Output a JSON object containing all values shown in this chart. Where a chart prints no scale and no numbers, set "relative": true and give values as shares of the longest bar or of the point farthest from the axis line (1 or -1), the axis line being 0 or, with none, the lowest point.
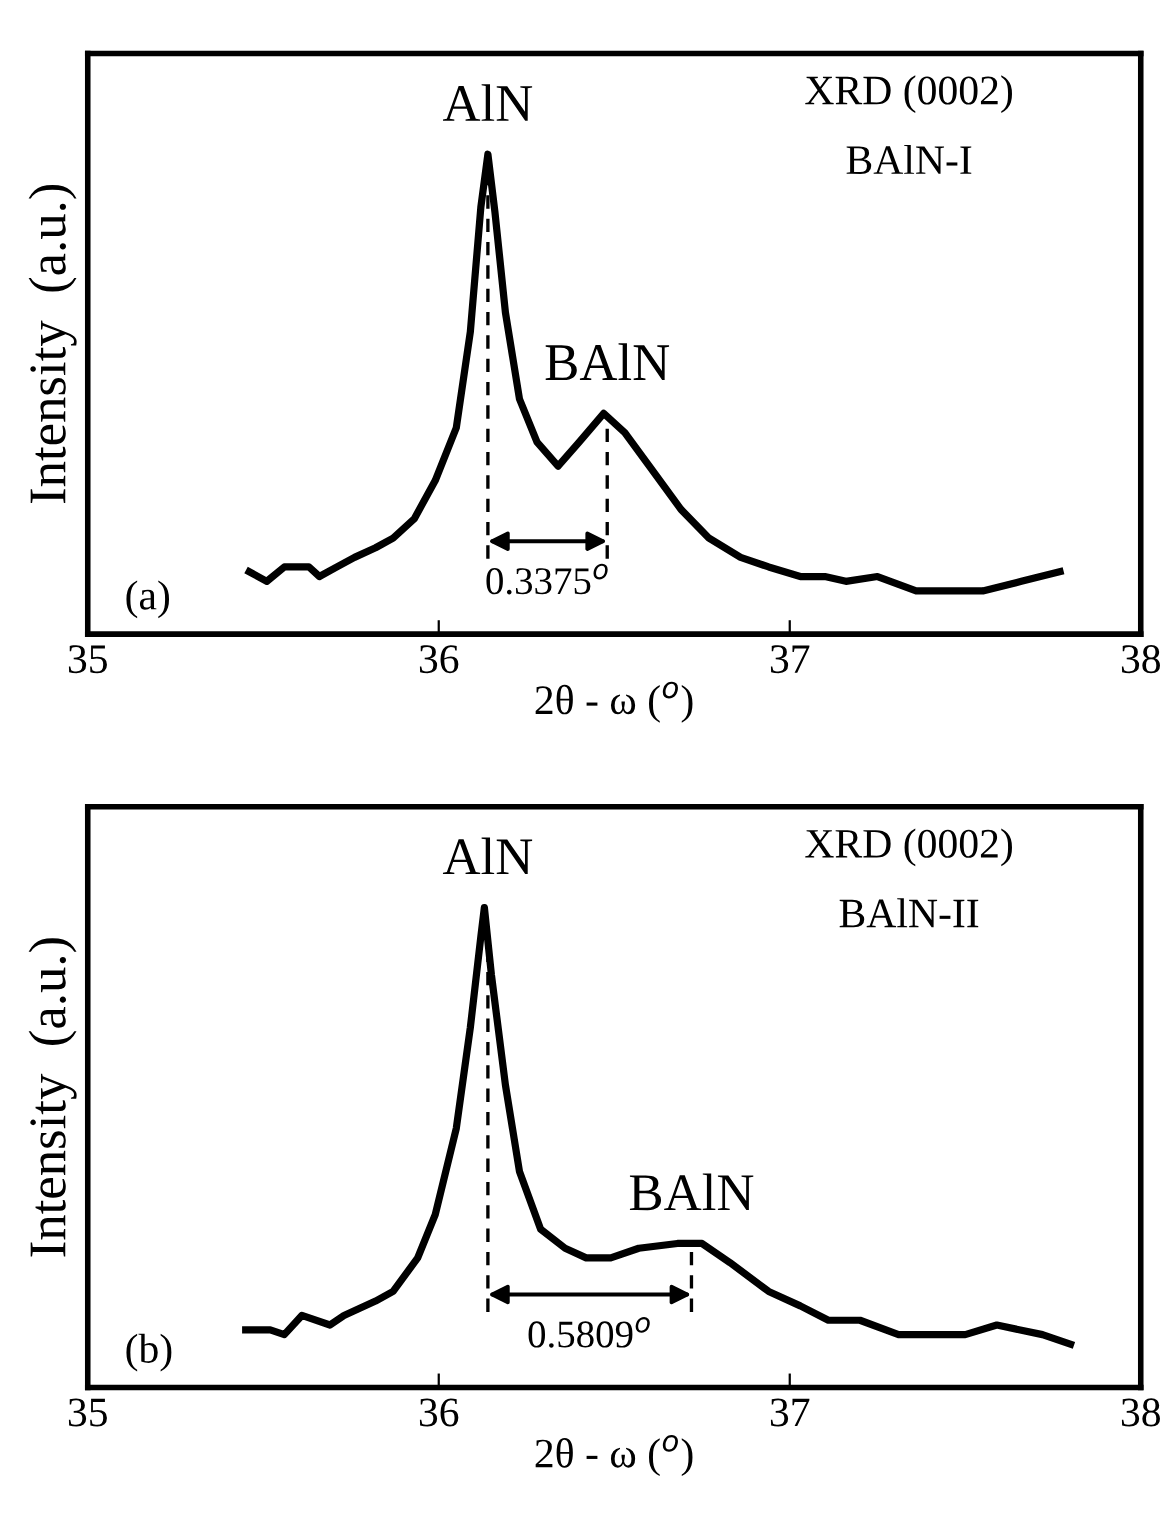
{
  "chart_data": [
    {
      "type": "line",
      "relative": true,
      "xlabel": "2θ - ω ($^{o}$)",
      "ylabel": "Intensity  (a.u.)",
      "xlim": [
        35,
        38
      ],
      "xticks": [
        35,
        36,
        37,
        38
      ],
      "tick_labels": "x",
      "series": [
        {
          "color": "#000000",
          "x": [
            35.46,
            35.51,
            35.56,
            35.63,
            35.66,
            35.71,
            35.76,
            35.82,
            35.87,
            35.93,
            35.99,
            36.05,
            36.09,
            36.12,
            36.14,
            36.16,
            36.19,
            36.23,
            36.28,
            36.34,
            36.4,
            36.47,
            36.53,
            36.6,
            36.69,
            36.77,
            36.86,
            36.94,
            37.03,
            37.1,
            37.16,
            37.25,
            37.36,
            37.46,
            37.55,
            37.66,
            37.77
          ],
          "values": [
            0.13,
            0.11,
            0.14,
            0.14,
            0.12,
            0.14,
            0.16,
            0.18,
            0.2,
            0.24,
            0.32,
            0.43,
            0.63,
            0.89,
            1.0,
            0.88,
            0.67,
            0.49,
            0.4,
            0.35,
            0.4,
            0.46,
            0.42,
            0.35,
            0.26,
            0.2,
            0.16,
            0.14,
            0.12,
            0.12,
            0.11,
            0.12,
            0.09,
            0.09,
            0.09,
            0.11,
            0.13
          ]
        }
      ],
      "ref_lines": [
        {
          "axis": "x",
          "value": 36.14,
          "line_style": "dashed"
        },
        {
          "axis": "x",
          "value": 36.48,
          "line_style": "dashed"
        }
      ],
      "annotations": [
        {
          "text": "AlN",
          "x": 36.14,
          "y": 1.0
        },
        {
          "text": "BAlN",
          "x": 36.48,
          "y": 0.46
        },
        "XRD (0002)",
        "BAlN-I",
        "(a)",
        "0.3375$^{o}$"
      ]
    },
    {
      "type": "line",
      "relative": true,
      "xlabel": "2θ - ω ($^{o}$)",
      "ylabel": "Intensity  (a.u.)",
      "xlim": [
        35,
        38
      ],
      "xticks": [
        35,
        36,
        37,
        38
      ],
      "tick_labels": "x",
      "series": [
        {
          "color": "#000000",
          "x": [
            35.45,
            35.52,
            35.56,
            35.61,
            35.69,
            35.73,
            35.82,
            35.87,
            35.94,
            35.99,
            36.05,
            36.09,
            36.12,
            36.13,
            36.15,
            36.19,
            36.23,
            36.29,
            36.36,
            36.42,
            36.49,
            36.57,
            36.68,
            36.75,
            36.83,
            36.94,
            37.03,
            37.11,
            37.2,
            37.31,
            37.41,
            37.5,
            37.59,
            37.72,
            37.8
          ],
          "values": [
            0.12,
            0.12,
            0.11,
            0.15,
            0.13,
            0.15,
            0.18,
            0.2,
            0.27,
            0.36,
            0.54,
            0.75,
            0.94,
            1.0,
            0.86,
            0.63,
            0.45,
            0.33,
            0.29,
            0.27,
            0.27,
            0.29,
            0.3,
            0.3,
            0.26,
            0.2,
            0.17,
            0.14,
            0.14,
            0.11,
            0.11,
            0.11,
            0.13,
            0.11,
            0.09
          ]
        }
      ],
      "ref_lines": [
        {
          "axis": "x",
          "value": 36.14,
          "line_style": "dashed"
        },
        {
          "axis": "x",
          "value": 36.72,
          "line_style": "dashed"
        }
      ],
      "annotations": [
        {
          "text": "AlN",
          "x": 36.14,
          "y": 1.0
        },
        {
          "text": "BAlN",
          "x": 36.72,
          "y": 0.3
        },
        "XRD (0002)",
        "BAlN-II",
        "(b)",
        "0.5809$^{o}$"
      ]
    }
  ]
}
